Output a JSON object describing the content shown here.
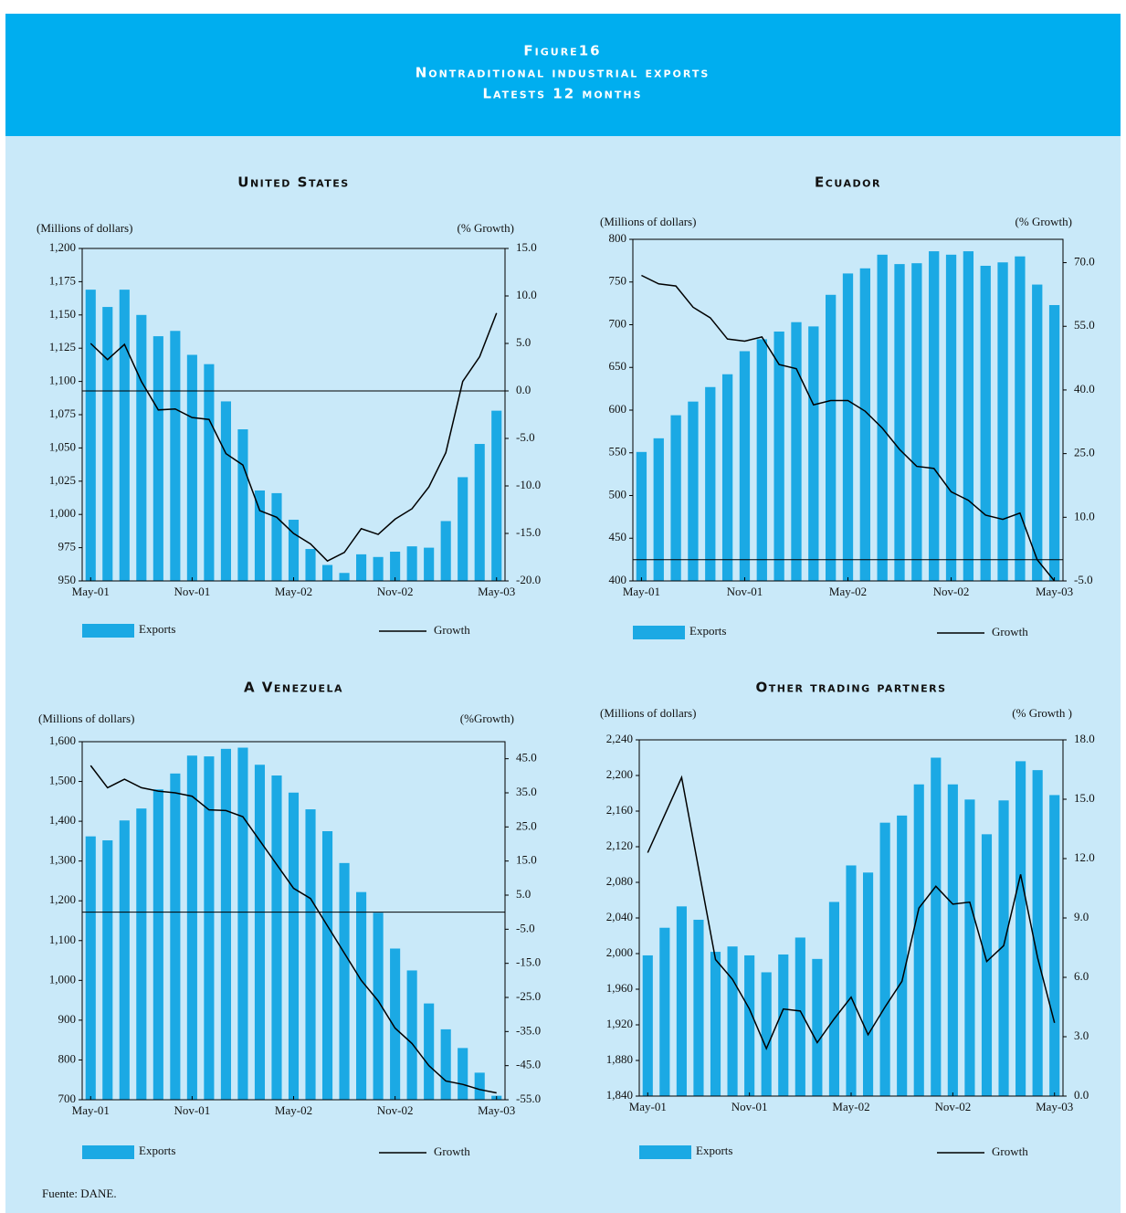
{
  "header": {
    "figure": "Figure16",
    "title": "Nontraditional industrial exports",
    "subtitle": "Latests 12 months"
  },
  "chart_data": [
    {
      "type": "bar",
      "title": "United States",
      "ylabel": "(Millions of dollars)",
      "y2label": "(% Growth)",
      "zero_line": true,
      "categories": [
        "May-01",
        null,
        null,
        null,
        null,
        null,
        "Nov-01",
        null,
        null,
        null,
        null,
        null,
        "May-02",
        null,
        null,
        null,
        null,
        null,
        "Nov-02",
        null,
        null,
        null,
        null,
        null,
        "May-03"
      ],
      "series": [
        {
          "name": "Exports",
          "color": "#1ba9e4",
          "values": [
            1169,
            1156,
            1169,
            1150,
            1134,
            1138,
            1120,
            1113,
            1085,
            1064,
            1018,
            1016,
            996,
            974,
            962,
            956,
            970,
            968,
            972,
            976,
            975,
            995,
            1028,
            1053,
            1078
          ]
        },
        {
          "name": "Growth",
          "color": "#000000",
          "axis": "y2",
          "values": [
            5.0,
            3.3,
            4.9,
            1.0,
            -2.0,
            -1.9,
            -2.8,
            -3.0,
            -6.6,
            -7.8,
            -12.6,
            -13.3,
            -15.0,
            -16.1,
            -17.9,
            -17.0,
            -14.5,
            -15.1,
            -13.5,
            -12.4,
            -10.1,
            -6.5,
            1.0,
            3.6,
            8.2
          ]
        }
      ],
      "ylim": [
        950,
        1200
      ],
      "yticks": [
        950,
        975,
        {
          "value": 1000,
          "label": "1,000"
        },
        {
          "value": 1025,
          "label": "1,025"
        },
        {
          "value": 1050,
          "label": "1,050"
        },
        {
          "value": 1075,
          "label": "1,075"
        },
        {
          "value": 1100,
          "label": "1,100"
        },
        {
          "value": 1125,
          "label": "1,125"
        },
        {
          "value": 1150,
          "label": "1,150"
        },
        {
          "value": 1175,
          "label": "1,175"
        },
        {
          "value": 1200,
          "label": "1,200"
        }
      ],
      "y2lim": [
        -20,
        15
      ],
      "y2ticks": [
        {
          "value": -20,
          "label": "-20.0"
        },
        {
          "value": -15,
          "label": "-15.0"
        },
        {
          "value": -10,
          "label": "-10.0"
        },
        {
          "value": -5,
          "label": "-5.0"
        },
        {
          "value": 0,
          "label": "0.0"
        },
        {
          "value": 5,
          "label": "5.0"
        },
        {
          "value": 10,
          "label": "10.0"
        },
        {
          "value": 15,
          "label": "15.0"
        }
      ]
    },
    {
      "type": "bar",
      "title": "Ecuador",
      "ylabel": "(Millions of dollars)",
      "y2label": "(% Growth)",
      "zero_line": true,
      "categories": [
        "May-01",
        null,
        null,
        null,
        null,
        null,
        "Nov-01",
        null,
        null,
        null,
        null,
        null,
        "May-02",
        null,
        null,
        null,
        null,
        null,
        "Nov-02",
        null,
        null,
        null,
        null,
        null,
        "May-03"
      ],
      "series": [
        {
          "name": "Exports",
          "color": "#1ba9e4",
          "values": [
            551,
            567,
            594,
            610,
            627,
            642,
            669,
            683,
            692,
            703,
            698,
            735,
            760,
            766,
            782,
            771,
            772,
            786,
            782,
            786,
            769,
            773,
            780,
            747,
            723
          ]
        },
        {
          "name": "Growth",
          "color": "#000000",
          "axis": "y2",
          "values": [
            67.0,
            65.0,
            64.5,
            59.5,
            57.0,
            52.0,
            51.5,
            52.5,
            46.0,
            45.0,
            36.5,
            37.5,
            37.5,
            35.0,
            31.0,
            26.0,
            22.0,
            21.5,
            16.0,
            14.0,
            10.5,
            9.5,
            11.0,
            0.0,
            -5.0
          ]
        }
      ],
      "ylim": [
        400,
        800
      ],
      "yticks": [
        400,
        450,
        500,
        550,
        600,
        650,
        700,
        750,
        800
      ],
      "y2lim": [
        -5,
        75.5
      ],
      "y2ticks": [
        {
          "value": -5,
          "label": "-5.0"
        },
        {
          "value": 10,
          "label": "10.0"
        },
        {
          "value": 25,
          "label": "25.0"
        },
        {
          "value": 40,
          "label": "40.0"
        },
        {
          "value": 55,
          "label": "55.0"
        },
        {
          "value": 70,
          "label": "70.0"
        }
      ]
    },
    {
      "type": "bar",
      "title": "A Venezuela",
      "ylabel": "(Millions of dollars)",
      "y2label": "(%Growth)",
      "zero_line": true,
      "categories": [
        "May-01",
        null,
        null,
        null,
        null,
        null,
        "Nov-01",
        null,
        null,
        null,
        null,
        null,
        "May-02",
        null,
        null,
        null,
        null,
        null,
        "Nov-02",
        null,
        null,
        null,
        null,
        null,
        "May-03"
      ],
      "series": [
        {
          "name": "Exports",
          "color": "#1ba9e4",
          "values": [
            1362,
            1352,
            1402,
            1432,
            1480,
            1520,
            1565,
            1563,
            1582,
            1585,
            1542,
            1515,
            1472,
            1430,
            1375,
            1295,
            1222,
            1170,
            1080,
            1025,
            942,
            877,
            830,
            768,
            710
          ]
        },
        {
          "name": "Growth",
          "color": "#000000",
          "axis": "y2",
          "values": [
            43.0,
            36.5,
            39.0,
            36.5,
            35.5,
            35.0,
            34.0,
            30.0,
            29.8,
            28.0,
            21.0,
            14.0,
            7.0,
            4.0,
            -4.0,
            -12.0,
            -20.0,
            -26.0,
            -34.0,
            -38.5,
            -45.0,
            -49.5,
            -50.5,
            -52.0,
            -53.0
          ]
        }
      ],
      "ylim": [
        700,
        1600
      ],
      "yticks": [
        700,
        800,
        900,
        {
          "value": 1000,
          "label": "1,000"
        },
        {
          "value": 1100,
          "label": "1,100"
        },
        {
          "value": 1200,
          "label": "1,200"
        },
        {
          "value": 1300,
          "label": "1,300"
        },
        {
          "value": 1400,
          "label": "1,400"
        },
        {
          "value": 1500,
          "label": "1,500"
        },
        {
          "value": 1600,
          "label": "1,600"
        }
      ],
      "y2lim": [
        -55,
        50
      ],
      "y2ticks": [
        {
          "value": -55,
          "label": "-55.0"
        },
        {
          "value": -45,
          "label": "-45.0"
        },
        {
          "value": -35,
          "label": "-35.0"
        },
        {
          "value": -25,
          "label": "-25.0"
        },
        {
          "value": -15,
          "label": "-15.0"
        },
        {
          "value": -5,
          "label": "-5.0"
        },
        {
          "value": 5,
          "label": "5.0"
        },
        {
          "value": 15,
          "label": "15.0"
        },
        {
          "value": 25,
          "label": "25.0"
        },
        {
          "value": 35,
          "label": "35.0"
        },
        {
          "value": 45,
          "label": "45.0"
        }
      ]
    },
    {
      "type": "bar",
      "title": "Other trading partners",
      "ylabel": "(Millions of dollars)",
      "y2label": "(% Growth )",
      "zero_line": false,
      "categories": [
        "May-01",
        null,
        null,
        null,
        null,
        null,
        "Nov-01",
        null,
        null,
        null,
        null,
        null,
        "May-02",
        null,
        null,
        null,
        null,
        null,
        "Nov-02",
        null,
        null,
        null,
        null,
        null,
        "May-03"
      ],
      "series": [
        {
          "name": "Exports",
          "color": "#1ba9e4",
          "values": [
            1998,
            2029,
            2053,
            2038,
            2002,
            2008,
            1998,
            1979,
            1999,
            2018,
            1994,
            2058,
            2099,
            2091,
            2147,
            2155,
            2190,
            2220,
            2190,
            2173,
            2134,
            2172,
            2216,
            2206,
            2178
          ]
        },
        {
          "name": "Growth",
          "color": "#000000",
          "axis": "y2",
          "values": [
            12.3,
            14.2,
            16.1,
            11.5,
            6.9,
            5.9,
            4.4,
            2.4,
            4.4,
            4.3,
            2.7,
            3.9,
            5.0,
            3.1,
            4.5,
            5.8,
            9.5,
            10.6,
            9.7,
            9.8,
            6.8,
            7.6,
            11.2,
            7.0,
            3.7
          ]
        }
      ],
      "ylim": [
        1840,
        2240
      ],
      "yticks": [
        {
          "value": 1840,
          "label": "1,840"
        },
        {
          "value": 1880,
          "label": "1,880"
        },
        {
          "value": 1920,
          "label": "1,920"
        },
        {
          "value": 1960,
          "label": "1,960"
        },
        {
          "value": 2000,
          "label": "2,000"
        },
        {
          "value": 2040,
          "label": "2,040"
        },
        {
          "value": 2080,
          "label": "2,080"
        },
        {
          "value": 2120,
          "label": "2,120"
        },
        {
          "value": 2160,
          "label": "2,160"
        },
        {
          "value": 2200,
          "label": "2,200"
        },
        {
          "value": 2240,
          "label": "2,240"
        }
      ],
      "y2lim": [
        0,
        18
      ],
      "y2ticks": [
        {
          "value": 0,
          "label": "0.0"
        },
        {
          "value": 3,
          "label": "3.0"
        },
        {
          "value": 6,
          "label": "6.0"
        },
        {
          "value": 9,
          "label": "9.0"
        },
        {
          "value": 12,
          "label": "12.0"
        },
        {
          "value": 15,
          "label": "15.0"
        },
        {
          "value": 18,
          "label": "18.0"
        }
      ]
    }
  ],
  "source": "Fuente: DANE."
}
